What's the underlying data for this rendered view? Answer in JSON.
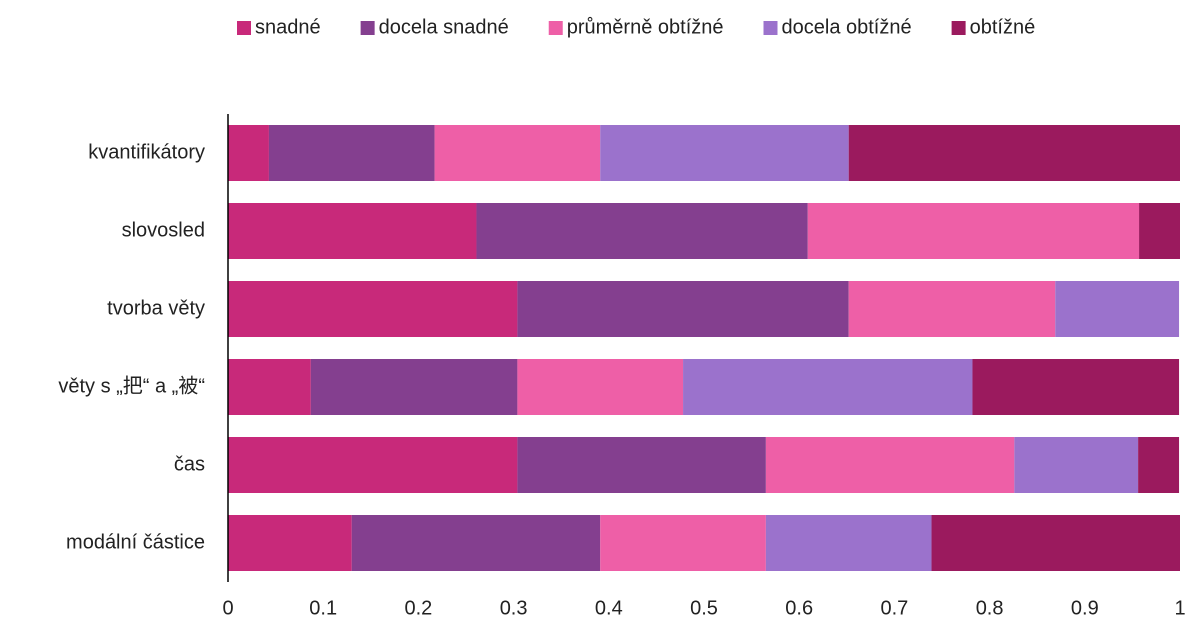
{
  "chart_data": {
    "type": "stacked-bar-horizontal",
    "categories": [
      "kvantifikátory",
      "slovosled",
      "tvorba věty",
      "věty s „把“ a „被“",
      "čas",
      "modální částice"
    ],
    "series": [
      {
        "name": "snadné",
        "color": "#c8297a",
        "values": [
          0.043,
          0.261,
          0.304,
          0.087,
          0.304,
          0.13
        ]
      },
      {
        "name": "docela snadné",
        "color": "#843f8f",
        "values": [
          0.174,
          0.348,
          0.348,
          0.217,
          0.261,
          0.261
        ]
      },
      {
        "name": "průměrně obtížné",
        "color": "#ee5fa7",
        "values": [
          0.174,
          0.348,
          0.217,
          0.174,
          0.261,
          0.174
        ]
      },
      {
        "name": "docela obtížné",
        "color": "#9b72cc",
        "values": [
          0.261,
          0,
          0.13,
          0.304,
          0.13,
          0.174
        ]
      },
      {
        "name": "obtížné",
        "color": "#9b1a5e",
        "values": [
          0.348,
          0.043,
          0,
          0.217,
          0.043,
          0.261
        ]
      }
    ],
    "xlim": [
      0,
      1
    ],
    "xticks": [
      0,
      0.1,
      0.2,
      0.3,
      0.4,
      0.5,
      0.6,
      0.7,
      0.8,
      0.9,
      1
    ],
    "grid": false,
    "legend": "top"
  }
}
